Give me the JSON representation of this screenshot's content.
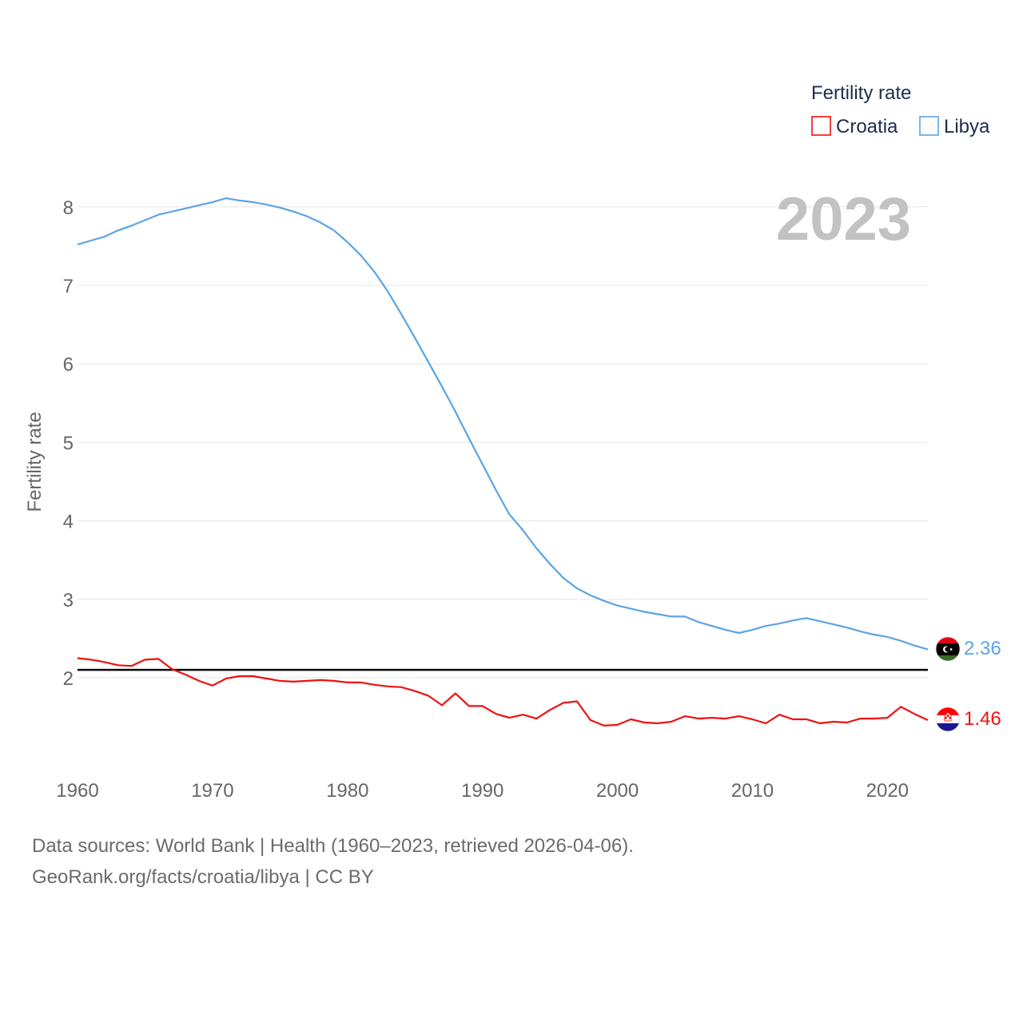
{
  "chart_data": {
    "type": "line",
    "title": "",
    "ylabel": "Fertility rate",
    "xlabel": "",
    "xlim": [
      1960,
      2023
    ],
    "ylim": [
      1.1,
      8.4
    ],
    "yticks": [
      2,
      3,
      4,
      5,
      6,
      7,
      8
    ],
    "xticks": [
      1960,
      1970,
      1980,
      1990,
      2000,
      2010,
      2020
    ],
    "year_watermark": "2023",
    "reference_line": {
      "value": 2.1,
      "color": "#000000"
    },
    "legend": {
      "title": "Fertility rate",
      "placement": "top-right"
    },
    "x": [
      1960,
      1961,
      1962,
      1963,
      1964,
      1965,
      1966,
      1967,
      1968,
      1969,
      1970,
      1971,
      1972,
      1973,
      1974,
      1975,
      1976,
      1977,
      1978,
      1979,
      1980,
      1981,
      1982,
      1983,
      1984,
      1985,
      1986,
      1987,
      1988,
      1989,
      1990,
      1991,
      1992,
      1993,
      1994,
      1995,
      1996,
      1997,
      1998,
      1999,
      2000,
      2001,
      2002,
      2003,
      2004,
      2005,
      2006,
      2007,
      2008,
      2009,
      2010,
      2011,
      2012,
      2013,
      2014,
      2015,
      2016,
      2017,
      2018,
      2019,
      2020,
      2021,
      2022,
      2023
    ],
    "series": [
      {
        "name": "Croatia",
        "color": "#ee1111",
        "end_label": "1.46",
        "flag": "croatia-flag",
        "values": [
          2.25,
          2.23,
          2.2,
          2.16,
          2.15,
          2.23,
          2.24,
          2.11,
          2.04,
          1.96,
          1.9,
          1.99,
          2.02,
          2.02,
          1.99,
          1.96,
          1.95,
          1.96,
          1.97,
          1.96,
          1.94,
          1.94,
          1.91,
          1.89,
          1.88,
          1.83,
          1.77,
          1.65,
          1.8,
          1.64,
          1.64,
          1.54,
          1.49,
          1.53,
          1.48,
          1.59,
          1.68,
          1.7,
          1.46,
          1.39,
          1.4,
          1.47,
          1.43,
          1.42,
          1.44,
          1.51,
          1.48,
          1.49,
          1.48,
          1.51,
          1.47,
          1.42,
          1.53,
          1.47,
          1.47,
          1.42,
          1.44,
          1.43,
          1.48,
          1.48,
          1.49,
          1.63,
          1.54,
          1.46
        ]
      },
      {
        "name": "Libya",
        "color": "#5ba4e5",
        "end_label": "2.36",
        "flag": "libya-flag",
        "values": [
          7.52,
          7.57,
          7.62,
          7.7,
          7.76,
          7.83,
          7.9,
          7.94,
          7.98,
          8.02,
          8.06,
          8.11,
          8.08,
          8.06,
          8.03,
          7.99,
          7.94,
          7.88,
          7.8,
          7.7,
          7.55,
          7.38,
          7.17,
          6.92,
          6.63,
          6.33,
          6.02,
          5.71,
          5.39,
          5.05,
          4.72,
          4.39,
          4.08,
          3.88,
          3.65,
          3.45,
          3.27,
          3.14,
          3.05,
          2.98,
          2.92,
          2.88,
          2.84,
          2.81,
          2.78,
          2.78,
          2.71,
          2.66,
          2.61,
          2.57,
          2.61,
          2.66,
          2.69,
          2.73,
          2.76,
          2.72,
          2.68,
          2.64,
          2.59,
          2.55,
          2.52,
          2.47,
          2.41,
          2.36
        ]
      }
    ]
  },
  "footer": {
    "line1": "Data sources: World Bank | Health (1960–2023, retrieved 2026-04-06).",
    "line2": "GeoRank.org/facts/croatia/libya | CC BY"
  }
}
